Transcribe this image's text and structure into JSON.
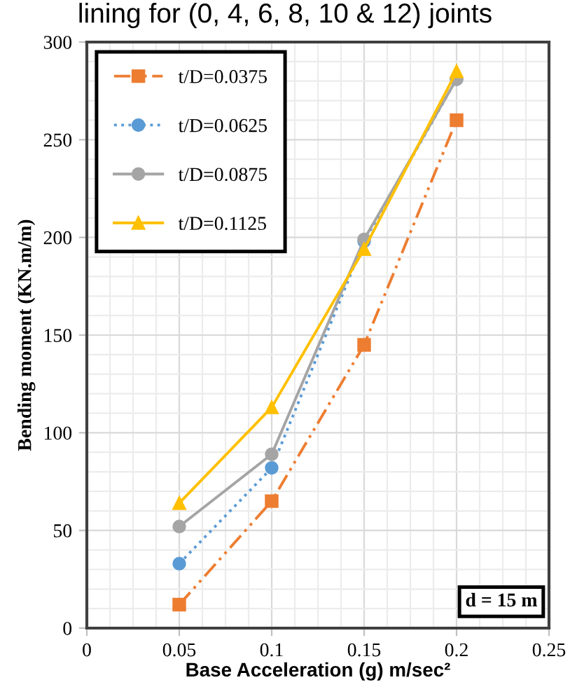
{
  "chart_data": {
    "type": "line",
    "title": "lining for (0, 4, 6, 8, 10 & 12) joints",
    "xlabel": "Base Acceleration (g) m/sec²",
    "ylabel": "Bending moment (KN.m/m)",
    "x": [
      0.05,
      0.1,
      0.15,
      0.2
    ],
    "series": [
      {
        "name": "t/D=0.0375",
        "color": "#ed7d31",
        "marker": "square",
        "line_style": "dashed",
        "values": [
          12,
          65,
          145,
          260
        ]
      },
      {
        "name": "t/D=0.0625",
        "color": "#5b9bd5",
        "marker": "circle",
        "line_style": "dotted",
        "values": [
          33,
          82,
          198,
          281
        ]
      },
      {
        "name": "t/D=0.0875",
        "color": "#a5a5a5",
        "marker": "circle",
        "line_style": "solid",
        "values": [
          52,
          89,
          199,
          281
        ]
      },
      {
        "name": "t/D=0.1125",
        "color": "#ffc000",
        "marker": "triangle",
        "line_style": "solid",
        "values": [
          64,
          113,
          194,
          285
        ]
      }
    ],
    "xlim": [
      0,
      0.25
    ],
    "xticks": [
      0,
      0.05,
      0.1,
      0.15,
      0.2,
      0.25
    ],
    "ylim": [
      0,
      300
    ],
    "yticks": [
      0,
      50,
      100,
      150,
      200,
      250,
      300
    ],
    "grid": true,
    "legend": "top left",
    "annotations": [
      "d = 15 m"
    ]
  }
}
